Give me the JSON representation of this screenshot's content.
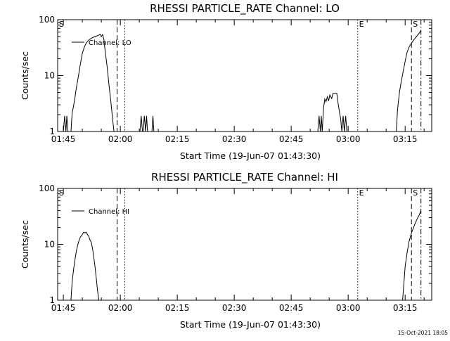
{
  "chart_data": [
    {
      "type": "line",
      "title": "RHESSI PARTICLE_RATE Channel: LO",
      "xlabel": "Start Time (19-Jun-07 01:43:30)",
      "ylabel": "Counts/sec",
      "y_scale": "log",
      "ylim": [
        1,
        100
      ],
      "xlim": [
        "01:43:30",
        "03:22:00"
      ],
      "x_tick_labels": [
        "01:45",
        "02:00",
        "02:15",
        "02:30",
        "02:45",
        "03:00",
        "03:15"
      ],
      "y_tick_labels": [
        "1",
        "10",
        "100"
      ],
      "legend": "Channel: LO",
      "legend_position": "top-left",
      "grid": false,
      "series": [
        {
          "name": "Channel: LO",
          "segments": [
            [
              [
                "01:45:00",
                1
              ],
              [
                "01:45:20",
                1.9
              ],
              [
                "01:45:40",
                1
              ],
              [
                "01:45:55",
                1.9
              ],
              [
                "01:46:10",
                1
              ],
              [
                "01:47:00",
                1
              ],
              [
                "01:47:20",
                2.2
              ],
              [
                "01:47:40",
                2.8
              ],
              [
                "01:48:00",
                3.8
              ],
              [
                "01:48:20",
                5.5
              ],
              [
                "01:48:40",
                7.5
              ],
              [
                "01:49:00",
                10
              ],
              [
                "01:49:20",
                14
              ],
              [
                "01:49:40",
                19
              ],
              [
                "01:50:00",
                25
              ],
              [
                "01:50:30",
                32
              ],
              [
                "01:51:00",
                38
              ],
              [
                "01:51:40",
                43
              ],
              [
                "01:52:30",
                47
              ],
              [
                "01:53:20",
                50
              ],
              [
                "01:54:10",
                52
              ],
              [
                "01:54:40",
                55
              ],
              [
                "01:55:00",
                50
              ],
              [
                "01:55:20",
                54
              ],
              [
                "01:55:40",
                45
              ],
              [
                "01:56:00",
                28
              ],
              [
                "01:56:30",
                15
              ],
              [
                "01:57:00",
                7
              ],
              [
                "01:57:30",
                3.5
              ],
              [
                "01:58:00",
                1.6
              ],
              [
                "01:58:20",
                1
              ]
            ],
            [
              [
                "02:05:10",
                1
              ],
              [
                "02:05:30",
                1.9
              ],
              [
                "02:05:50",
                1
              ]
            ],
            [
              [
                "02:06:00",
                1
              ],
              [
                "02:06:20",
                1.9
              ],
              [
                "02:06:40",
                1
              ],
              [
                "02:06:55",
                1.9
              ],
              [
                "02:07:10",
                1
              ]
            ],
            [
              [
                "02:08:20",
                1
              ],
              [
                "02:08:35",
                1.9
              ],
              [
                "02:08:50",
                1
              ]
            ],
            [
              [
                "02:52:00",
                1
              ],
              [
                "02:52:20",
                1.9
              ],
              [
                "02:52:40",
                1
              ],
              [
                "02:52:55",
                1.9
              ],
              [
                "02:53:10",
                1
              ],
              [
                "02:53:30",
                2.6
              ],
              [
                "02:53:50",
                3.8
              ],
              [
                "02:54:10",
                3.4
              ],
              [
                "02:54:30",
                4.2
              ],
              [
                "02:54:50",
                3.5
              ],
              [
                "02:55:10",
                4.5
              ],
              [
                "02:55:40",
                3.9
              ],
              [
                "02:56:00",
                4.8
              ],
              [
                "02:56:30",
                4.8
              ],
              [
                "02:57:00",
                4.8
              ],
              [
                "02:57:20",
                3.2
              ],
              [
                "02:57:40",
                2.3
              ],
              [
                "02:58:00",
                1.7
              ],
              [
                "02:58:20",
                1
              ],
              [
                "02:58:40",
                1.9
              ],
              [
                "02:59:00",
                1
              ],
              [
                "02:59:20",
                1.9
              ],
              [
                "02:59:40",
                1
              ]
            ],
            [
              [
                "03:12:40",
                1
              ],
              [
                "03:13:00",
                2.5
              ],
              [
                "03:13:30",
                5
              ],
              [
                "03:14:00",
                8
              ],
              [
                "03:14:30",
                12
              ],
              [
                "03:15:00",
                18
              ],
              [
                "03:15:30",
                26
              ],
              [
                "03:16:00",
                32
              ],
              [
                "03:16:40",
                38
              ],
              [
                "03:17:20",
                44
              ],
              [
                "03:18:00",
                50
              ],
              [
                "03:18:40",
                57
              ],
              [
                "03:19:10",
                64
              ]
            ]
          ]
        }
      ],
      "markers": [
        {
          "label": "S",
          "time": "01:43:30",
          "style": "dash-dot"
        },
        {
          "label": "",
          "time": "01:59:10",
          "style": "dashed"
        },
        {
          "label": "",
          "time": "02:01:10",
          "style": "dotted"
        },
        {
          "label": "E",
          "time": "03:02:30",
          "style": "dotted"
        },
        {
          "label": "S",
          "time": "03:16:40",
          "style": "dashed"
        },
        {
          "label": "",
          "time": "03:19:10",
          "style": "dash-dot"
        }
      ]
    },
    {
      "type": "line",
      "title": "RHESSI PARTICLE_RATE Channel: HI",
      "xlabel": "Start Time (19-Jun-07 01:43:30)",
      "ylabel": "Counts/sec",
      "y_scale": "log",
      "ylim": [
        1,
        100
      ],
      "xlim": [
        "01:43:30",
        "03:22:00"
      ],
      "x_tick_labels": [
        "01:45",
        "02:00",
        "02:15",
        "02:30",
        "02:45",
        "03:00",
        "03:15"
      ],
      "y_tick_labels": [
        "1",
        "10",
        "100"
      ],
      "legend": "Channel: HI",
      "legend_position": "top-left",
      "grid": false,
      "series": [
        {
          "name": "Channel: HI",
          "segments": [
            [
              [
                "01:47:00",
                1
              ],
              [
                "01:47:20",
                2.2
              ],
              [
                "01:47:40",
                3.4
              ],
              [
                "01:48:00",
                5
              ],
              [
                "01:48:20",
                7
              ],
              [
                "01:48:40",
                9
              ],
              [
                "01:49:00",
                11
              ],
              [
                "01:49:30",
                13.5
              ],
              [
                "01:50:00",
                15
              ],
              [
                "01:50:20",
                16.5
              ],
              [
                "01:50:40",
                16
              ],
              [
                "01:51:00",
                16.5
              ],
              [
                "01:51:20",
                15
              ],
              [
                "01:51:40",
                14
              ],
              [
                "01:52:00",
                12
              ],
              [
                "01:52:20",
                11
              ],
              [
                "01:52:40",
                8.5
              ],
              [
                "01:53:00",
                6
              ],
              [
                "01:53:20",
                4
              ],
              [
                "01:53:40",
                2.5
              ],
              [
                "01:54:00",
                1.5
              ],
              [
                "01:54:20",
                1
              ]
            ],
            [
              [
                "03:14:20",
                1
              ],
              [
                "03:14:40",
                2
              ],
              [
                "03:15:00",
                4
              ],
              [
                "03:15:30",
                7
              ],
              [
                "03:16:00",
                11
              ],
              [
                "03:16:40",
                16
              ],
              [
                "03:17:20",
                21
              ],
              [
                "03:18:00",
                27
              ],
              [
                "03:18:40",
                33
              ],
              [
                "03:19:10",
                40
              ]
            ]
          ]
        }
      ],
      "markers": [
        {
          "label": "S",
          "time": "01:43:30",
          "style": "dash-dot"
        },
        {
          "label": "",
          "time": "01:59:10",
          "style": "dashed"
        },
        {
          "label": "",
          "time": "02:01:10",
          "style": "dotted"
        },
        {
          "label": "E",
          "time": "03:02:30",
          "style": "dotted"
        },
        {
          "label": "S",
          "time": "03:16:40",
          "style": "dashed"
        },
        {
          "label": "",
          "time": "03:19:10",
          "style": "dash-dot"
        }
      ]
    }
  ],
  "timestamp": "15-Oct-2021 18:05"
}
